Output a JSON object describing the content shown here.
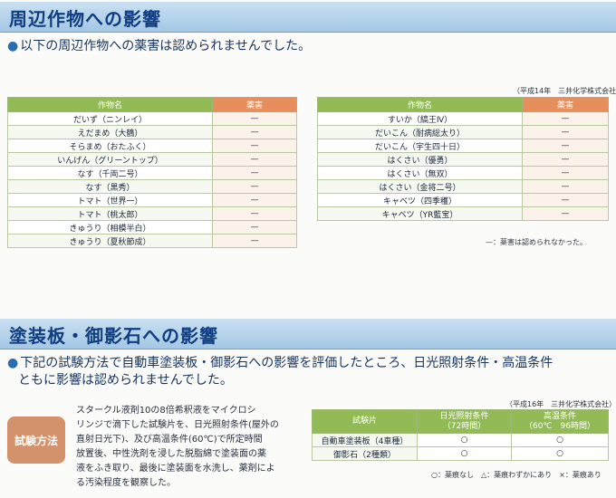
{
  "section1": {
    "title": "周辺作物への影響",
    "lead": "以下の周辺作物への薬害は認められませんでした。",
    "credit": "（平成14年　三井化学株式会社）",
    "left_table": {
      "header_crop": "作物名",
      "header_damage": "薬害",
      "rows": [
        {
          "crop": "だいず（ニンレイ）",
          "damage": "—"
        },
        {
          "crop": "えだまめ（大鶴）",
          "damage": "—"
        },
        {
          "crop": "そらまめ（おたふく）",
          "damage": "—"
        },
        {
          "crop": "いんげん（グリーントップ）",
          "damage": "—"
        },
        {
          "crop": "なす（千両二号）",
          "damage": "—"
        },
        {
          "crop": "なす（黒秀）",
          "damage": "—"
        },
        {
          "crop": "トマト（世界一）",
          "damage": "—"
        },
        {
          "crop": "トマト（桃太郎）",
          "damage": "—"
        },
        {
          "crop": "きゅうり（相模半白）",
          "damage": "—"
        },
        {
          "crop": "きゅうり（夏秋節成）",
          "damage": "—"
        }
      ]
    },
    "right_table": {
      "header_crop": "作物名",
      "header_damage": "薬害",
      "rows": [
        {
          "crop": "すいか（縞王Ⅳ）",
          "damage": "—"
        },
        {
          "crop": "だいこん（耐病総太り）",
          "damage": "—"
        },
        {
          "crop": "だいこん（宇生四十日）",
          "damage": "—"
        },
        {
          "crop": "はくさい（優勇）",
          "damage": "—"
        },
        {
          "crop": "はくさい（無双）",
          "damage": "—"
        },
        {
          "crop": "はくさい（金将二号）",
          "damage": "—"
        },
        {
          "crop": "キャベツ（四季穫）",
          "damage": "—"
        },
        {
          "crop": "キャベツ（YR藍宝）",
          "damage": "—"
        }
      ]
    },
    "note": "—：薬害は認められなかった。"
  },
  "section2": {
    "title": "塗装板・御影石への影響",
    "lead_line1": "下記の試験方法で自動車塗装板・御影石への影響を評価したところ、日光照射条件・高温条件",
    "lead_line2": "ともに影響は認められませんでした。",
    "badge": "試験方法",
    "method_lines": [
      "スタークル液剤10の8倍希釈液をマイクロシ",
      "リンジで滴下した試験片を、日光照射条件(屋外の",
      "直射日光下)、及び高温条件(60℃)で所定時間",
      "放置後、中性洗剤を浸した脱脂綿で塗装面の薬",
      "液をふき取り、最後に塗装面を水洗し、薬剤によ",
      "る汚染程度を観察した。"
    ],
    "credit": "（平成16年　三井化学株式会社）",
    "test_table": {
      "header_piece": "試験片",
      "header_sun_line1": "日光照射条件",
      "header_sun_line2": "（72時間）",
      "header_heat_line1": "高温条件",
      "header_heat_line2": "（60℃　96時間）",
      "rows": [
        {
          "piece": "自動車塗装板（4車種）",
          "sun": "○",
          "heat": "○"
        },
        {
          "piece": "御影石（2種類）",
          "sun": "○",
          "heat": "○"
        }
      ]
    },
    "legend": "○：薬痕なし　△：薬痕わずかにあり　×：薬痕あり"
  }
}
